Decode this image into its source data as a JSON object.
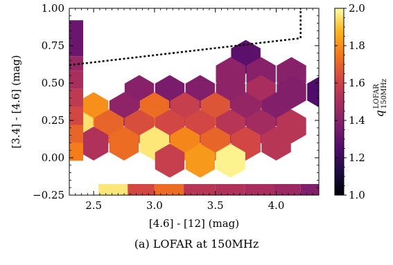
{
  "chart_data": {
    "type": "heatmap",
    "subtype": "hexbin",
    "xlabel": "[4.6] - [12] (mag)",
    "ylabel": "[3.4] - [4.6] (mag)",
    "xlim": [
      2.3,
      4.35
    ],
    "ylim": [
      -0.25,
      1.0
    ],
    "xticks": [
      2.5,
      3.0,
      3.5,
      4.0
    ],
    "xtick_labels": [
      "2.5",
      "3.0",
      "3.5",
      "4.0"
    ],
    "yticks": [
      -0.25,
      0.0,
      0.25,
      0.5,
      0.75,
      1.0
    ],
    "ytick_labels": [
      "−0.25",
      "0.00",
      "0.25",
      "0.50",
      "0.75",
      "1.00"
    ],
    "colorbar": {
      "label_main": "q",
      "label_sup": "LOFAR",
      "label_sub": "150MHz",
      "range": [
        1.0,
        2.0
      ],
      "ticks": [
        1.0,
        1.2,
        1.4,
        1.6,
        1.8,
        2.0
      ],
      "tick_labels": [
        "1.0",
        "1.2",
        "1.4",
        "1.6",
        "1.8",
        "2.0"
      ]
    },
    "hexbins": [
      {
        "x": 3.75,
        "y": 0.675,
        "q": 1.28
      },
      {
        "x": 3.625,
        "y": 0.56,
        "q": 1.42
      },
      {
        "x": 3.875,
        "y": 0.56,
        "q": 1.4
      },
      {
        "x": 4.125,
        "y": 0.56,
        "q": 1.4
      },
      {
        "x": 2.875,
        "y": 0.44,
        "q": 1.4
      },
      {
        "x": 3.125,
        "y": 0.44,
        "q": 1.36
      },
      {
        "x": 3.375,
        "y": 0.44,
        "q": 1.38
      },
      {
        "x": 3.625,
        "y": 0.44,
        "q": 1.42
      },
      {
        "x": 3.875,
        "y": 0.44,
        "q": 1.5
      },
      {
        "x": 4.125,
        "y": 0.44,
        "q": 1.38
      },
      {
        "x": 4.375,
        "y": 0.44,
        "q": 1.25
      },
      {
        "x": 2.5,
        "y": 0.325,
        "q": 1.8
      },
      {
        "x": 2.75,
        "y": 0.325,
        "q": 1.42
      },
      {
        "x": 3.0,
        "y": 0.325,
        "q": 1.72
      },
      {
        "x": 3.25,
        "y": 0.325,
        "q": 1.58
      },
      {
        "x": 3.5,
        "y": 0.325,
        "q": 1.66
      },
      {
        "x": 3.75,
        "y": 0.325,
        "q": 1.44
      },
      {
        "x": 4.0,
        "y": 0.325,
        "q": 1.38
      },
      {
        "x": 2.375,
        "y": 0.21,
        "q": 1.95
      },
      {
        "x": 2.625,
        "y": 0.21,
        "q": 1.7
      },
      {
        "x": 2.875,
        "y": 0.21,
        "q": 1.64
      },
      {
        "x": 3.125,
        "y": 0.21,
        "q": 1.62
      },
      {
        "x": 3.375,
        "y": 0.21,
        "q": 1.62
      },
      {
        "x": 3.625,
        "y": 0.21,
        "q": 1.54
      },
      {
        "x": 3.875,
        "y": 0.21,
        "q": 1.48
      },
      {
        "x": 4.125,
        "y": 0.21,
        "q": 1.54
      },
      {
        "x": 2.5,
        "y": 0.095,
        "q": 1.52
      },
      {
        "x": 2.75,
        "y": 0.095,
        "q": 1.72
      },
      {
        "x": 3.0,
        "y": 0.095,
        "q": 1.96
      },
      {
        "x": 3.25,
        "y": 0.095,
        "q": 1.78
      },
      {
        "x": 3.5,
        "y": 0.095,
        "q": 1.7
      },
      {
        "x": 3.75,
        "y": 0.095,
        "q": 1.62
      },
      {
        "x": 4.0,
        "y": 0.095,
        "q": 1.54
      },
      {
        "x": 3.125,
        "y": -0.02,
        "q": 1.58
      },
      {
        "x": 3.375,
        "y": -0.02,
        "q": 1.82
      },
      {
        "x": 3.625,
        "y": -0.02,
        "q": 1.98
      }
    ],
    "left_strip": [
      {
        "y0": 0.68,
        "y1": 0.92,
        "q": 1.32
      },
      {
        "y0": 0.58,
        "y1": 0.68,
        "q": 1.45
      },
      {
        "y0": 0.46,
        "y1": 0.58,
        "q": 1.5
      },
      {
        "y0": 0.34,
        "y1": 0.46,
        "q": 1.56
      },
      {
        "y0": 0.22,
        "y1": 0.34,
        "q": 1.62
      },
      {
        "y0": 0.1,
        "y1": 0.22,
        "q": 1.7
      },
      {
        "y0": -0.02,
        "y1": 0.1,
        "q": 1.76
      }
    ],
    "bottom_strip": [
      {
        "x0": 2.54,
        "x1": 2.78,
        "q": 1.96
      },
      {
        "x0": 2.78,
        "x1": 3.0,
        "q": 1.62
      },
      {
        "x0": 3.0,
        "x1": 3.24,
        "q": 1.72
      },
      {
        "x0": 3.24,
        "x1": 3.5,
        "q": 1.54
      },
      {
        "x0": 3.5,
        "x1": 3.74,
        "q": 1.52
      },
      {
        "x0": 3.74,
        "x1": 3.98,
        "q": 1.5
      },
      {
        "x0": 3.98,
        "x1": 4.2,
        "q": 1.46
      },
      {
        "x0": 4.2,
        "x1": 4.35,
        "q": 1.38
      }
    ],
    "dashed_line": [
      [
        2.3,
        0.62
      ],
      [
        4.2,
        0.8
      ],
      [
        4.2,
        1.0
      ]
    ]
  },
  "caption": "(a) LOFAR at 150MHz"
}
